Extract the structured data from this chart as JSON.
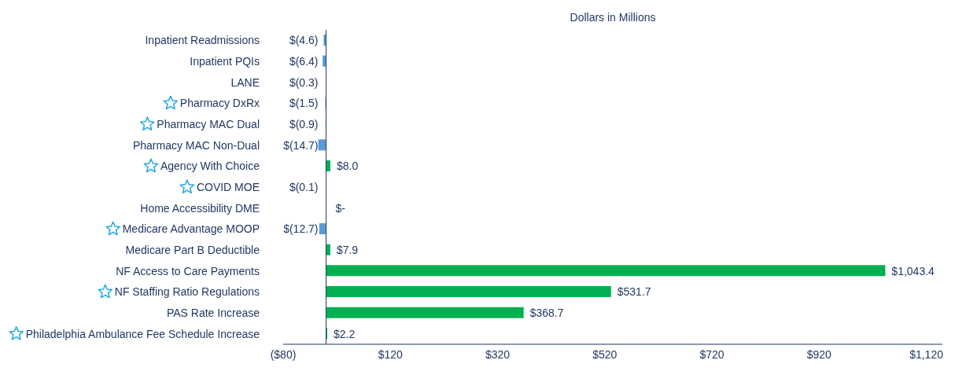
{
  "chart_data": {
    "type": "bar",
    "orientation": "horizontal",
    "title": "Dollars in Millions",
    "categories": [
      "Inpatient Readmissions",
      "Inpatient PQIs",
      "LANE",
      "Pharmacy DxRx",
      "Pharmacy MAC Dual",
      "Pharmacy MAC Non-Dual",
      "Agency With Choice",
      "COVID MOE",
      "Home Accessibility DME",
      "Medicare Advantage MOOP",
      "Medicare Part B Deductible",
      "NF Access to Care Payments",
      "NF Staffing Ratio Regulations",
      "PAS Rate Increase",
      "Philadelphia Ambulance Fee Schedule Increase"
    ],
    "values": [
      -4.6,
      -6.4,
      -0.3,
      -1.5,
      -0.9,
      -14.7,
      8.0,
      -0.1,
      0,
      -12.7,
      7.9,
      1043.4,
      531.7,
      368.7,
      2.2
    ],
    "colors": [
      "#5b9bd5",
      "#5b9bd5",
      "#5b9bd5",
      "#5b9bd5",
      "#5b9bd5",
      "#5b9bd5",
      "#00b050",
      "#5b9bd5",
      "#00b050",
      "#5b9bd5",
      "#00b050",
      "#00b050",
      "#00b050",
      "#00b050",
      "#00b050"
    ],
    "value_labels": [
      "$(4.6)",
      "$(6.4)",
      "$(0.3)",
      "$(1.5)",
      "$(0.9)",
      "$(14.7)",
      "$8.0",
      "$(0.1)",
      "$-",
      "$(12.7)",
      "$7.9",
      "$1,043.4",
      "$531.7",
      "$368.7",
      "$2.2"
    ],
    "xlim": [
      -80,
      1150
    ],
    "xticks": [
      {
        "value": -80,
        "label": "($80)"
      },
      {
        "value": 120,
        "label": "$120"
      },
      {
        "value": 320,
        "label": "$320"
      },
      {
        "value": 520,
        "label": "$520"
      },
      {
        "value": 720,
        "label": "$720"
      },
      {
        "value": 920,
        "label": "$920"
      },
      {
        "value": 1120,
        "label": "$1,120"
      }
    ],
    "ref_lines": [
      {
        "axis": "x",
        "value": 0,
        "color": "#203864"
      }
    ],
    "grid": false,
    "legend": false
  }
}
